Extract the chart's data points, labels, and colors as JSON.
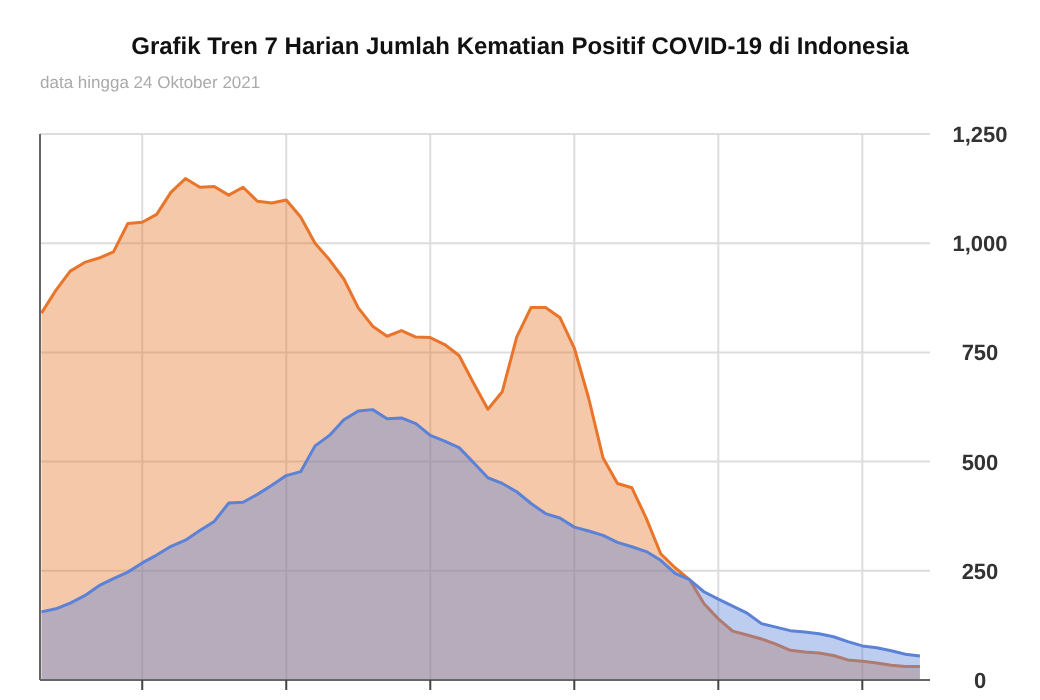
{
  "chart_data": {
    "type": "area",
    "title": "Grafik Tren 7 Harian Jumlah Kematian Positif COVID-19 di Indonesia",
    "subtitle": "data hingga 24 Oktober 2021",
    "categories": [
      null,
      null,
      null,
      null,
      null,
      null,
      null,
      null,
      null,
      null,
      null,
      null,
      null,
      null,
      null,
      null,
      null,
      null,
      null,
      null,
      null,
      null,
      null,
      null,
      null,
      null,
      null,
      null,
      null,
      null,
      null,
      null,
      null,
      null,
      null,
      null,
      null,
      null,
      null,
      null,
      null,
      null,
      null,
      null,
      null,
      null,
      null,
      null,
      null,
      null,
      null,
      null,
      null,
      null,
      null,
      null,
      null,
      null,
      null,
      null,
      null,
      null
    ],
    "ylim": [
      0,
      1250
    ],
    "yticks": [
      0,
      250,
      500,
      750,
      {
        "value": 1000,
        "label": "1,000"
      },
      {
        "value": 1250,
        "label": "1,250"
      }
    ],
    "grid": true,
    "tick_labels": "y",
    "series": [
      {
        "color": "#e8752a",
        "values": [
          840,
          892,
          936,
          956,
          966,
          980,
          1045,
          1048,
          1066,
          1117,
          1148,
          1128,
          1130,
          1110,
          1128,
          1096,
          1092,
          1099,
          1060,
          1000,
          962,
          918,
          852,
          810,
          787,
          800,
          785,
          784,
          768,
          743,
          680,
          620,
          660,
          785,
          853,
          853,
          830,
          760,
          645,
          508,
          450,
          440,
          370,
          289,
          257,
          230,
          175,
          140,
          112,
          103,
          94,
          82,
          68,
          64,
          62,
          56,
          46,
          43,
          39,
          34,
          31,
          31
        ]
      },
      {
        "color": "#5b82d6",
        "values": [
          156,
          163,
          176,
          193,
          216,
          232,
          247,
          268,
          286,
          306,
          320,
          342,
          363,
          405,
          407,
          425,
          446,
          468,
          477,
          536,
          560,
          596,
          616,
          619,
          598,
          600,
          587,
          560,
          547,
          532,
          498,
          463,
          450,
          431,
          404,
          381,
          371,
          350,
          341,
          331,
          315,
          305,
          294,
          274,
          244,
          230,
          202,
          185,
          169,
          153,
          129,
          121,
          113,
          110,
          106,
          99,
          88,
          78,
          74,
          67,
          59,
          55
        ]
      }
    ]
  }
}
